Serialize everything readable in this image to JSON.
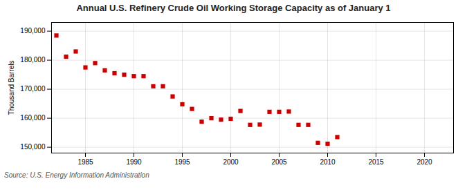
{
  "chart_data": {
    "type": "scatter",
    "title": "Annual U.S. Refinery Crude Oil Working Storage Capacity as of January 1",
    "ylabel": "Thousand Barrels",
    "source": "Source: U.S. Energy Information Administration",
    "color": "#cc0000",
    "marker": "square",
    "grid": true,
    "xlim": [
      1981.5,
      2023
    ],
    "xticks": [
      1985,
      1990,
      1995,
      2000,
      2005,
      2010,
      2015,
      2020
    ],
    "ylim": [
      148000,
      193000
    ],
    "yticks": [
      {
        "value": 150000,
        "label": "150,000"
      },
      {
        "value": 160000,
        "label": "160,000"
      },
      {
        "value": 170000,
        "label": "170,000"
      },
      {
        "value": 180000,
        "label": "180,000"
      },
      {
        "value": 190000,
        "label": "190,000"
      }
    ],
    "x": [
      1982,
      1983,
      1984,
      1985,
      1986,
      1987,
      1988,
      1989,
      1990,
      1991,
      1992,
      1993,
      1994,
      1995,
      1996,
      1997,
      1998,
      1999,
      2000,
      2001,
      2002,
      2003,
      2004,
      2005,
      2006,
      2007,
      2008,
      2009,
      2010,
      2011
    ],
    "values": [
      188500,
      181200,
      183000,
      177500,
      179000,
      176500,
      175500,
      175000,
      174500,
      174500,
      171000,
      171000,
      167500,
      164800,
      163200,
      158800,
      160000,
      159500,
      159800,
      162500,
      157700,
      157800,
      162200,
      162200,
      162300,
      157700,
      157700,
      151500,
      151200,
      153500
    ]
  }
}
